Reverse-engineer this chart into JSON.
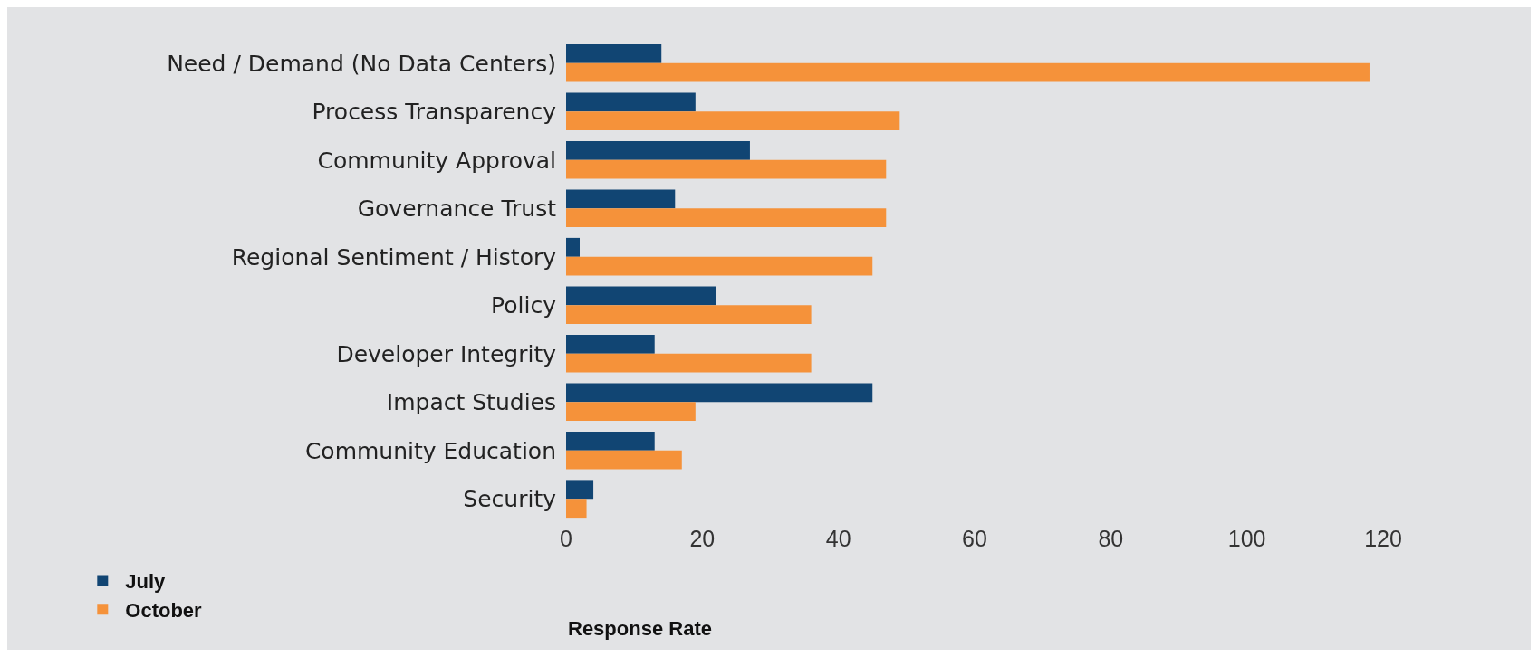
{
  "chart_data": {
    "type": "bar",
    "orientation": "horizontal",
    "xlabel": "Response Rate",
    "categories": [
      "Need / Demand (No Data Centers)",
      "Process Transparency",
      "Community Approval",
      "Governance Trust",
      "Regional Sentiment / History",
      "Policy",
      "Developer Integrity",
      "Impact Studies",
      "Community Education",
      "Security"
    ],
    "series": [
      {
        "name": "July",
        "color": "#114573",
        "values": [
          14,
          19,
          27,
          16,
          2,
          22,
          13,
          45,
          13,
          4
        ]
      },
      {
        "name": "October",
        "color": "#f5923a",
        "values": [
          118,
          49,
          47,
          47,
          45,
          36,
          36,
          19,
          17,
          3
        ]
      }
    ],
    "xlim": [
      0,
      120
    ],
    "xticks": [
      0,
      20,
      40,
      60,
      80,
      100,
      120
    ],
    "grid": false,
    "legend": "bottom left"
  }
}
